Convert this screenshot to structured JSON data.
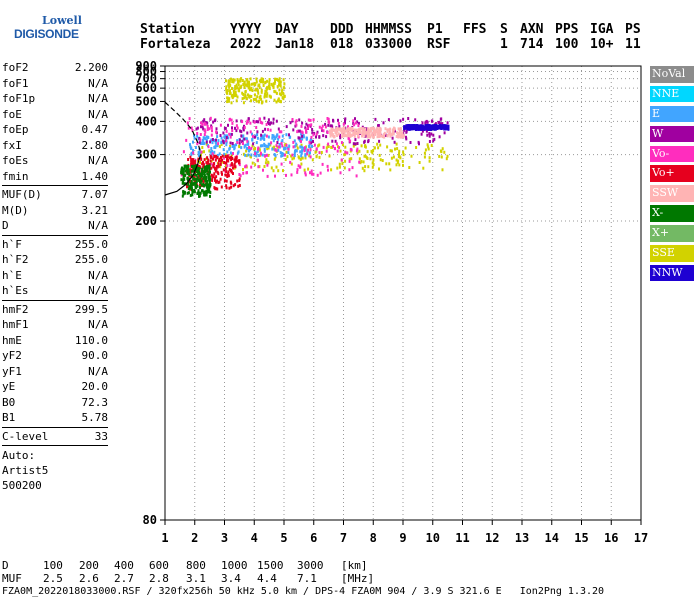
{
  "logo": {
    "line1": "Lowell",
    "line2": "DIGISONDE"
  },
  "header": {
    "row1": [
      "Station",
      "YYYY",
      "DAY",
      "DDD",
      "HHMMSS",
      "P1",
      "FFS",
      "S",
      "AXN",
      "PPS",
      "IGA",
      "PS"
    ],
    "row2": [
      "Fortaleza",
      "2022",
      "Jan18",
      "018",
      "033000",
      "RSF",
      "1",
      "714",
      "100",
      "10+",
      "11"
    ]
  },
  "params": {
    "group1": [
      {
        "label": "foF2",
        "value": "2.200"
      },
      {
        "label": "foF1",
        "value": "N/A"
      },
      {
        "label": "foF1p",
        "value": "N/A"
      },
      {
        "label": "foE",
        "value": "N/A"
      },
      {
        "label": "foEp",
        "value": "0.47"
      },
      {
        "label": "fxI",
        "value": "2.80"
      },
      {
        "label": "foEs",
        "value": "N/A"
      },
      {
        "label": "fmin",
        "value": "1.40"
      }
    ],
    "group2": [
      {
        "label": "MUF(D)",
        "value": "7.07"
      },
      {
        "label": "M(D)",
        "value": "3.21"
      },
      {
        "label": "D",
        "value": "N/A"
      }
    ],
    "group3": [
      {
        "label": "h`F",
        "value": "255.0"
      },
      {
        "label": "h`F2",
        "value": "255.0"
      },
      {
        "label": "h`E",
        "value": "N/A"
      },
      {
        "label": "h`Es",
        "value": "N/A"
      }
    ],
    "group4": [
      {
        "label": "hmF2",
        "value": "299.5"
      },
      {
        "label": "hmF1",
        "value": "N/A"
      },
      {
        "label": "hmE",
        "value": "110.0"
      },
      {
        "label": "yF2",
        "value": "90.0"
      },
      {
        "label": "yF1",
        "value": "N/A"
      },
      {
        "label": "yE",
        "value": "20.0"
      },
      {
        "label": "B0",
        "value": "72.3"
      },
      {
        "label": "B1",
        "value": "5.78"
      }
    ],
    "group5": [
      {
        "label": "C-level",
        "value": "33"
      }
    ],
    "auto": [
      "Auto:",
      "Artist5",
      "500200"
    ]
  },
  "legend": [
    {
      "label": "NoVal",
      "color": "#8c8c8c"
    },
    {
      "label": "NNE",
      "color": "#00d7ff"
    },
    {
      "label": "E",
      "color": "#41a5ff"
    },
    {
      "label": "W",
      "color": "#a000a0"
    },
    {
      "label": "Vo-",
      "color": "#ff2dbe"
    },
    {
      "label": "Vo+",
      "color": "#e6001e"
    },
    {
      "label": "SSW",
      "color": "#ffb4b4"
    },
    {
      "label": "X-",
      "color": "#007800"
    },
    {
      "label": "X+",
      "color": "#73b964"
    },
    {
      "label": "SSE",
      "color": "#d2d200"
    },
    {
      "label": "NNW",
      "color": "#1e00d2"
    }
  ],
  "footer": {
    "distance_label": "D",
    "distances": [
      "100",
      "200",
      "400",
      "600",
      "800",
      "1000",
      "1500",
      "3000",
      "[km]"
    ],
    "muf_label": "MUF",
    "mufs": [
      "2.5",
      "2.6",
      "2.7",
      "2.8",
      "3.1",
      "3.4",
      "4.4",
      "7.1",
      "[MHz]"
    ],
    "info": "FZA0M_2022018033000.RSF / 320fx256h 50 kHz 5.0 km / DPS-4 FZA0M 904 / 3.9 S 321.6 E   Ion2Png 1.3.20"
  },
  "chart_data": {
    "type": "scatter",
    "x_ticks": [
      1,
      2,
      3,
      4,
      5,
      6,
      7,
      8,
      9,
      10,
      11,
      12,
      13,
      14,
      15,
      16,
      17
    ],
    "y_ticks": [
      80,
      200,
      300,
      400,
      500,
      600,
      700,
      800,
      900
    ],
    "xlim": [
      1,
      17
    ],
    "y_axis_note": "reciprocal height scale",
    "grid": "dotted",
    "clusters": [
      {
        "color_key": "SSE",
        "x_range": [
          2.0,
          10.5
        ],
        "y_range": [
          270,
          330
        ]
      },
      {
        "color_key": "E",
        "x_range": [
          1.8,
          6.0
        ],
        "y_range": [
          300,
          360
        ]
      },
      {
        "color_key": "W",
        "x_range": [
          2.0,
          10.5
        ],
        "y_range": [
          330,
          420
        ]
      },
      {
        "color_key": "Vo-",
        "x_range": [
          1.5,
          7.5
        ],
        "y_range": [
          260,
          420
        ]
      },
      {
        "color_key": "Vo+",
        "x_range": [
          1.7,
          3.5
        ],
        "y_range": [
          240,
          300
        ]
      },
      {
        "color_key": "X-",
        "x_range": [
          1.5,
          2.5
        ],
        "y_range": [
          230,
          280
        ]
      },
      {
        "color_key": "SSW",
        "x_range": [
          6.5,
          9.0
        ],
        "y_range": [
          350,
          380
        ]
      },
      {
        "color_key": "NNW",
        "x_range": [
          9.0,
          10.5
        ],
        "y_range": [
          375,
          390
        ]
      },
      {
        "color_key": "SSE",
        "x_range": [
          3.0,
          5.0
        ],
        "y_range": [
          500,
          720
        ]
      }
    ]
  }
}
